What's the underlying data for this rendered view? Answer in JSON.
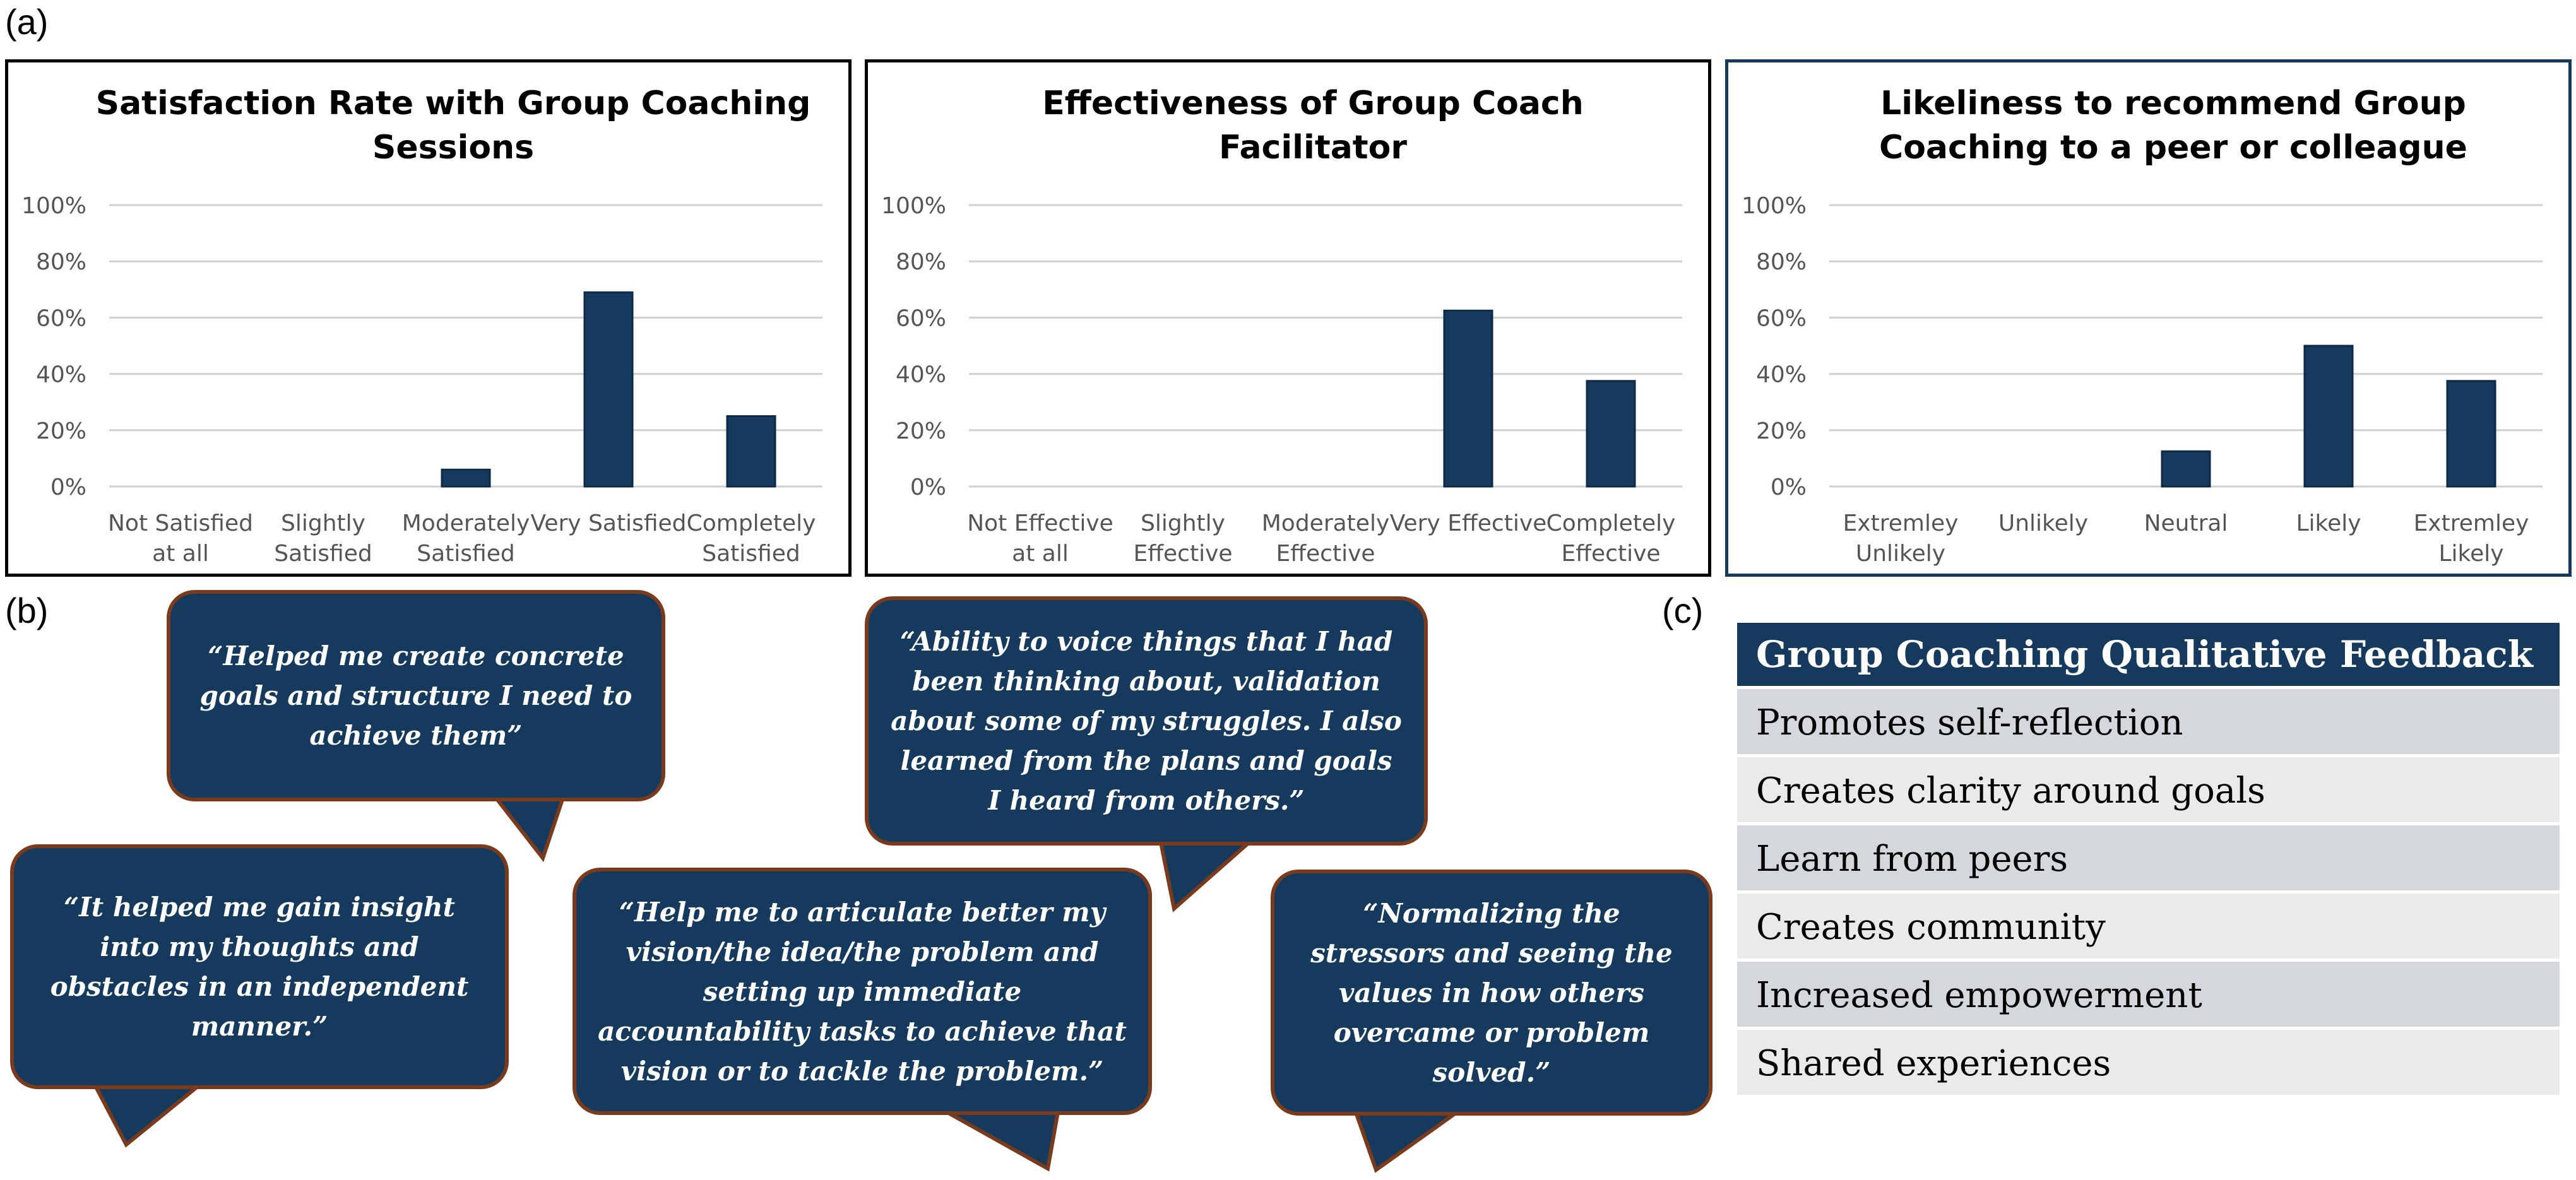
{
  "panel_labels": {
    "a": "(a)",
    "b": "(b)",
    "c": "(c)"
  },
  "colors": {
    "bar": "#163a5e",
    "grid": "#d0d0d0",
    "bubble_fill": "#163a5e",
    "bubble_border": "#7a3a1c",
    "table_header": "#163a5e"
  },
  "chart_data": [
    {
      "type": "bar",
      "title_lines": [
        "Satisfaction Rate with Group Coaching",
        "Sessions"
      ],
      "categories": [
        [
          "Not Satisfied",
          "at all"
        ],
        [
          "Slightly",
          "Satisfied"
        ],
        [
          "Moderately",
          "Satisfied"
        ],
        [
          "Very Satisfied"
        ],
        [
          "Completely",
          "Satisfied"
        ]
      ],
      "values": [
        0,
        0,
        6,
        69,
        25
      ],
      "yticks": [
        "0%",
        "20%",
        "40%",
        "60%",
        "80%",
        "100%"
      ],
      "ylim": [
        0,
        100
      ],
      "grid": true
    },
    {
      "type": "bar",
      "title_lines": [
        "Effectiveness of Group Coach",
        "Facilitator"
      ],
      "categories": [
        [
          "Not Effective",
          "at all"
        ],
        [
          "Slightly",
          "Effective"
        ],
        [
          "Moderately",
          "Effective"
        ],
        [
          "Very Effective"
        ],
        [
          "Completely",
          "Effective"
        ]
      ],
      "values": [
        0,
        0,
        0,
        62.5,
        37.5
      ],
      "yticks": [
        "0%",
        "20%",
        "40%",
        "60%",
        "80%",
        "100%"
      ],
      "ylim": [
        0,
        100
      ],
      "grid": true
    },
    {
      "type": "bar",
      "title_lines": [
        "Likeliness to recommend Group",
        "Coaching to a peer or colleague"
      ],
      "categories": [
        [
          "Extremley",
          "Unlikely"
        ],
        [
          "Unlikely"
        ],
        [
          "Neutral"
        ],
        [
          "Likely"
        ],
        [
          "Extremley",
          "Likely"
        ]
      ],
      "values": [
        0,
        0,
        12.5,
        50,
        37.5
      ],
      "yticks": [
        "0%",
        "20%",
        "40%",
        "60%",
        "80%",
        "100%"
      ],
      "ylim": [
        0,
        100
      ],
      "grid": true
    }
  ],
  "quotes": [
    {
      "lines": [
        "“Helped me create concrete",
        "goals and structure I need to",
        "achieve them”"
      ]
    },
    {
      "lines": [
        "“It helped me gain insight",
        "into my thoughts and",
        "obstacles in an independent",
        "manner.”"
      ]
    },
    {
      "lines": [
        "“Ability to voice things that I had",
        "been thinking about, validation",
        "about some of my struggles. I also",
        "learned from the plans and goals",
        "I heard from others.”"
      ]
    },
    {
      "lines": [
        "“Help me to articulate better my",
        "vision/the idea/the problem and",
        "setting up immediate",
        "accountability tasks to achieve that",
        "vision or to tackle the problem.”"
      ]
    },
    {
      "lines": [
        "“Normalizing the",
        "stressors and seeing the",
        "values in how others",
        "overcame or problem",
        "solved.”"
      ]
    }
  ],
  "feedback_table": {
    "header": "Group Coaching Qualitative Feedback",
    "rows": [
      "Promotes self-reflection",
      "Creates clarity around goals",
      "Learn from peers",
      "Creates community",
      "Increased empowerment",
      "Shared experiences"
    ]
  }
}
